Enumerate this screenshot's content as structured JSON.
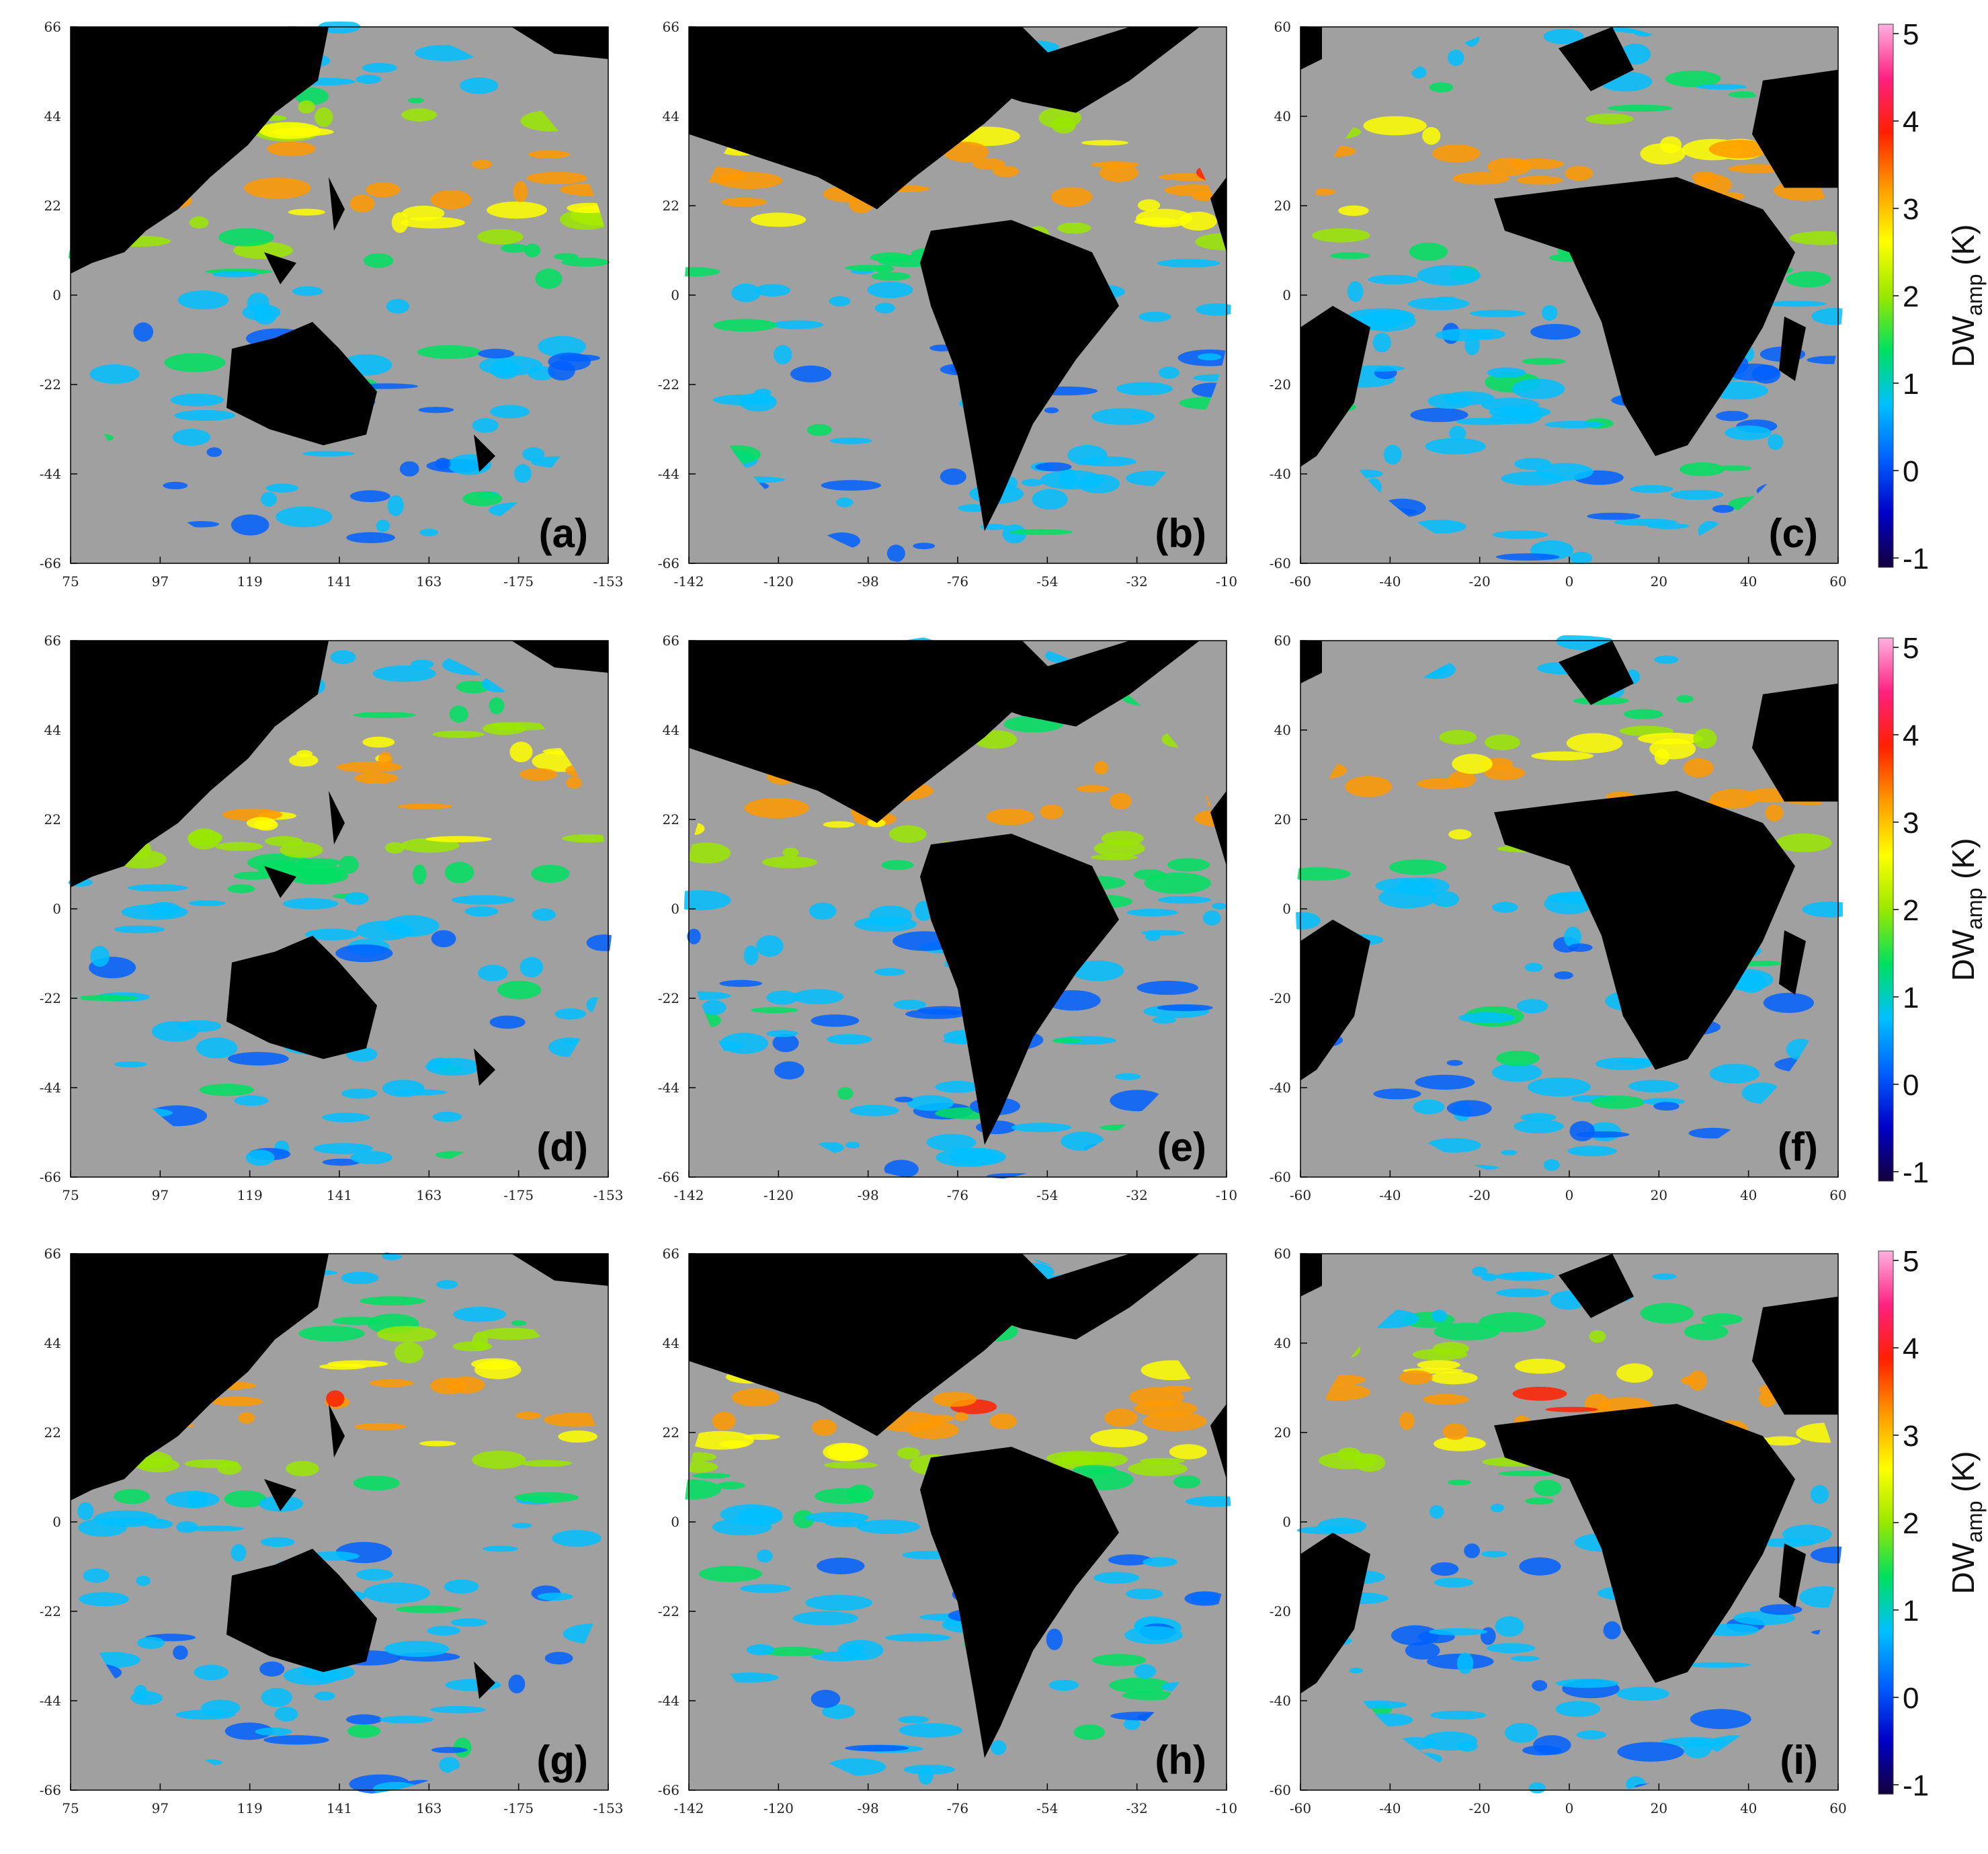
{
  "chart_data": {
    "type": "heatmap",
    "rows": 3,
    "cols": 3,
    "panel_labels": [
      "(a)",
      "(b)",
      "(c)",
      "(d)",
      "(e)",
      "(f)",
      "(g)",
      "(h)",
      "(i)"
    ],
    "x_ticks_by_column": [
      [
        "75",
        "97",
        "119",
        "141",
        "163",
        "-175",
        "-153"
      ],
      [
        "-142",
        "-120",
        "-98",
        "-76",
        "-54",
        "-32",
        "-10"
      ],
      [
        "-60",
        "-40",
        "-20",
        "0",
        "20",
        "40",
        "60"
      ]
    ],
    "y_ticks_by_column": [
      [
        "66",
        "44",
        "22",
        "0",
        "-22",
        "-44",
        "-66"
      ],
      [
        "66",
        "44",
        "22",
        "0",
        "-22",
        "-44",
        "-66"
      ],
      [
        "60",
        "40",
        "20",
        "0",
        "-20",
        "-40",
        "-60"
      ]
    ],
    "colorbar": {
      "label_main": "DW",
      "label_sub": "amp",
      "label_unit": " (K)",
      "ticks": [
        "5",
        "4",
        "3",
        "2",
        "1",
        "0",
        "-1"
      ],
      "range": [
        -1,
        5
      ],
      "colors": [
        "#14003c",
        "#0000c8",
        "#0060ff",
        "#00c0ff",
        "#00e060",
        "#9ae800",
        "#ffff00",
        "#ff9900",
        "#ff2000",
        "#ff2080",
        "#ffb0e0"
      ]
    },
    "colors": {
      "background": "#ffffff",
      "ocean_no_data": "#a0a0a0",
      "land": "#000000"
    }
  }
}
